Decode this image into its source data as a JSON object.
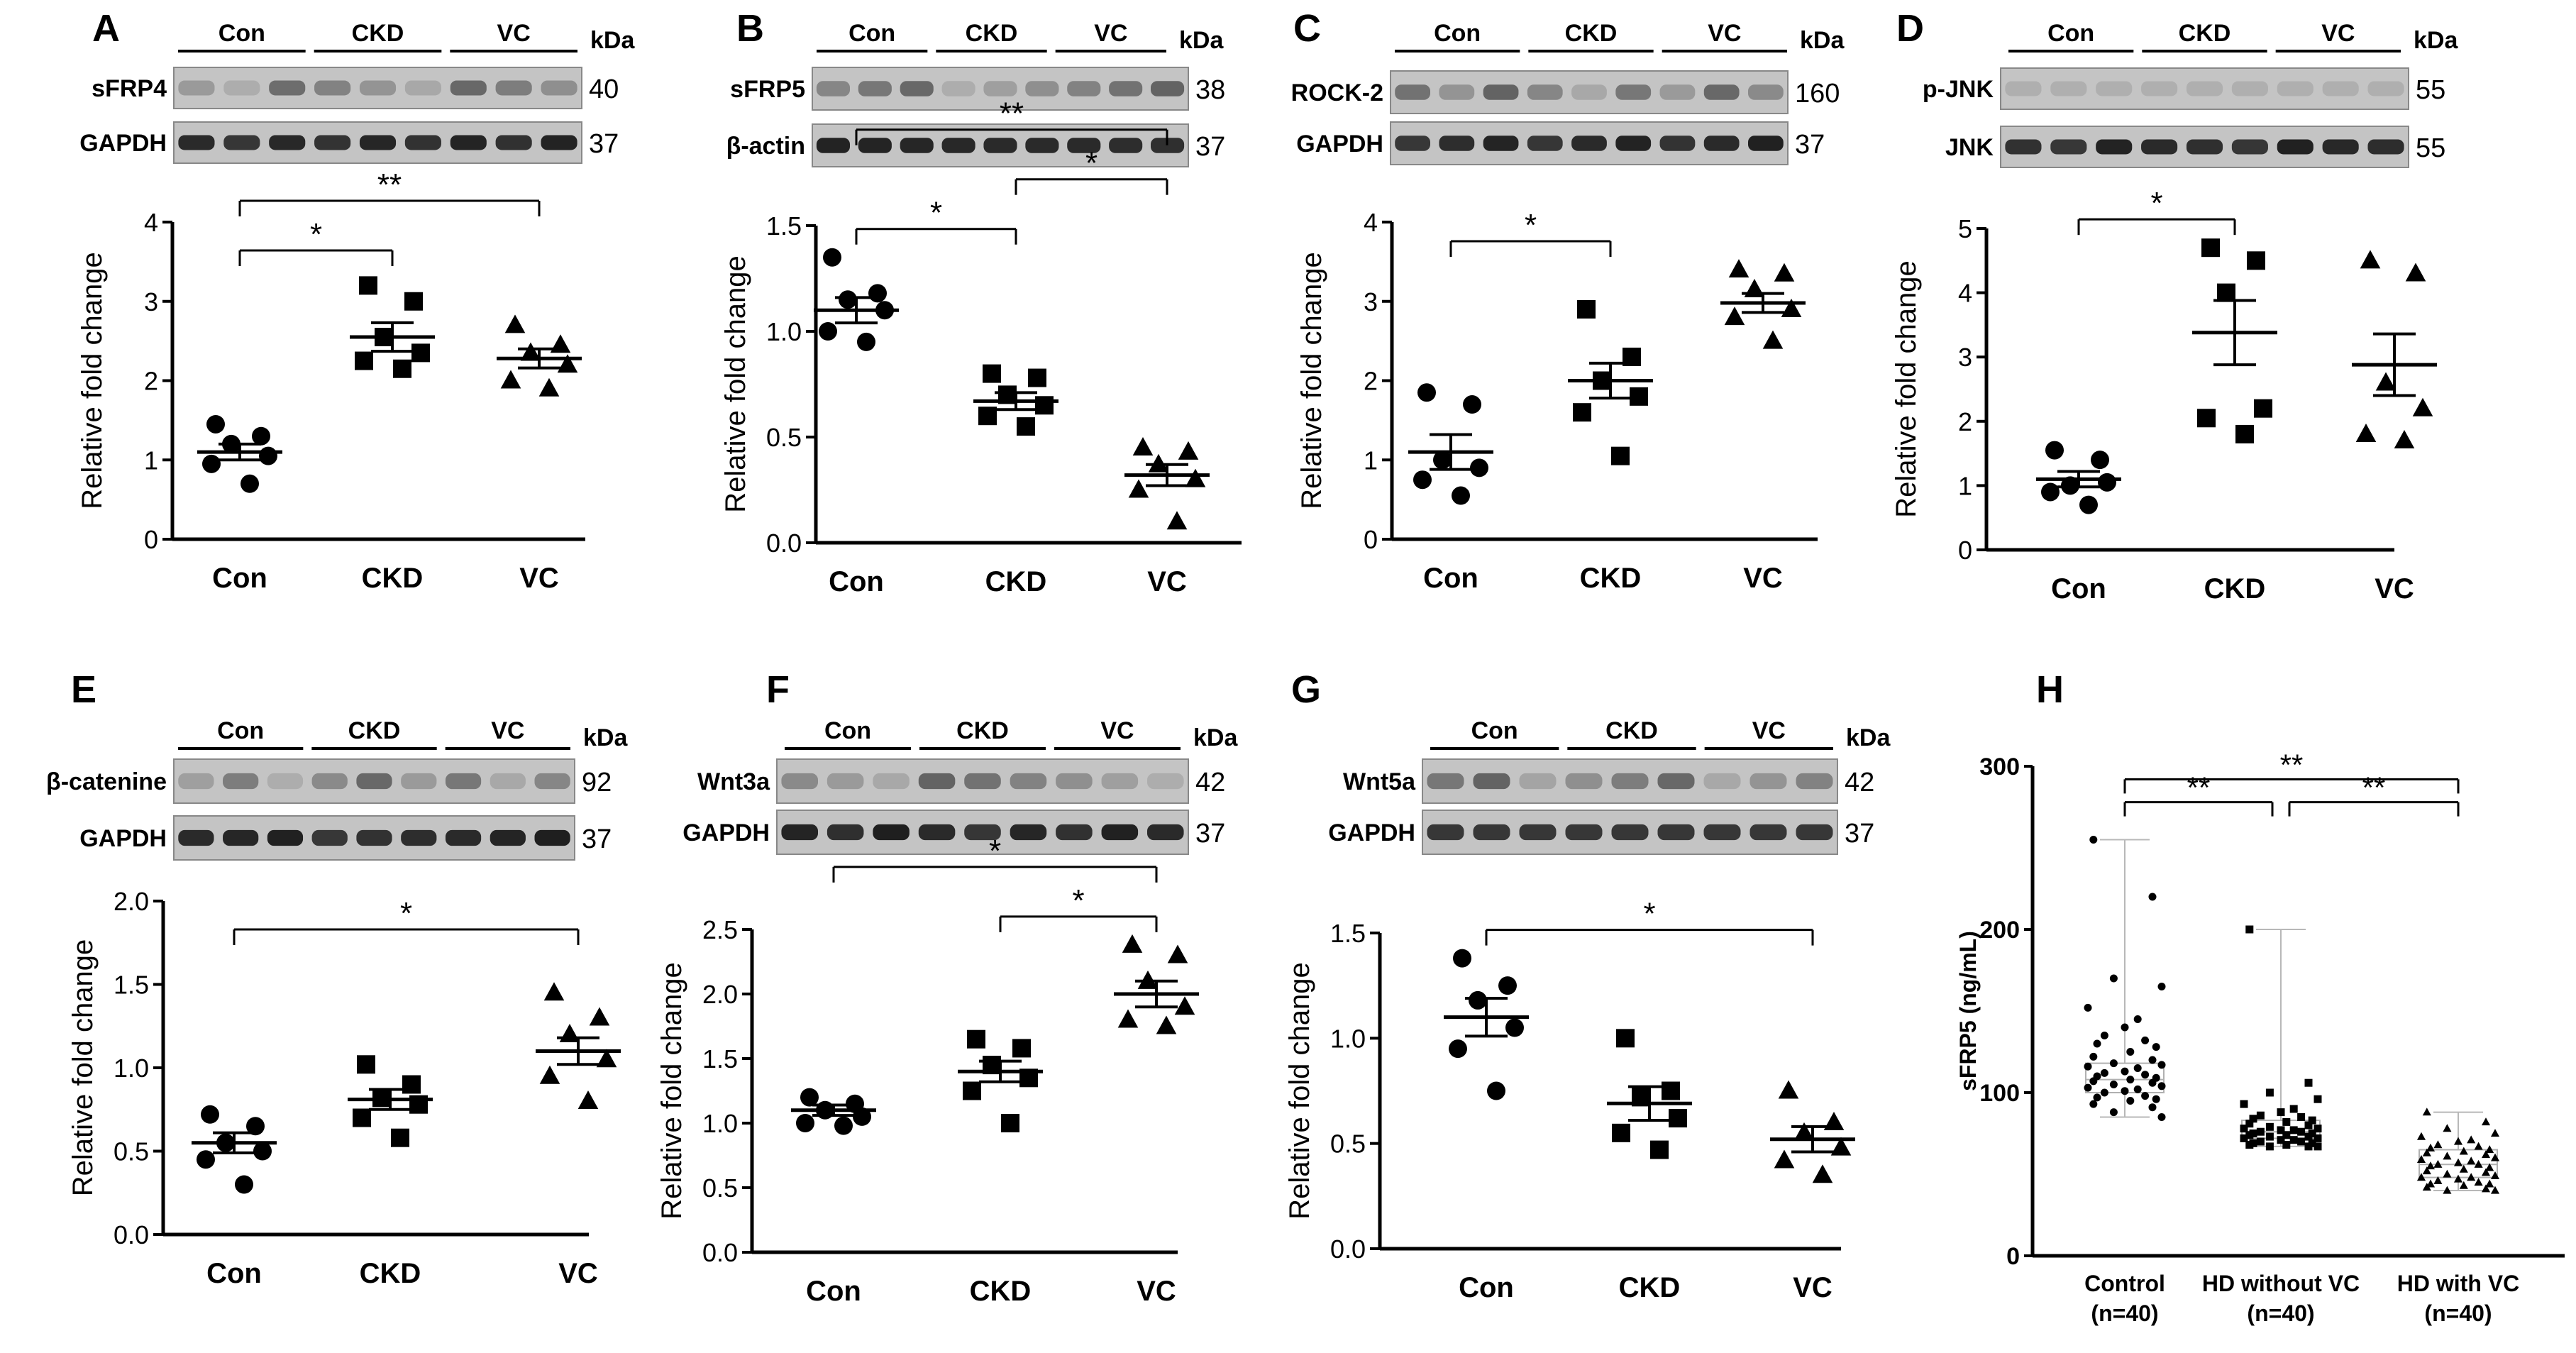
{
  "figure_labels": {
    "groups": [
      "Con",
      "CKD",
      "VC"
    ],
    "kda": "kDa",
    "ylabel": "Relative fold change"
  },
  "colors": {
    "ink": "#000000",
    "blot_bg": "#c4c4c4",
    "band": "#1a1a1a",
    "box": "#b0b0b0",
    "whisker": "#b8b8b8"
  },
  "chart_data": [
    {
      "panel": "A",
      "type": "scatter",
      "blots": [
        {
          "protein": "sFRP4",
          "kda": "40"
        },
        {
          "protein": "GAPDH",
          "kda": "37"
        }
      ],
      "ylim": [
        0,
        4
      ],
      "yticks": [
        "0",
        "1",
        "2",
        "3",
        "4"
      ],
      "categories": [
        "Con",
        "CKD",
        "VC"
      ],
      "series": [
        {
          "name": "Con",
          "marker": "circle",
          "values": [
            1.45,
            1.3,
            1.2,
            1.05,
            0.95,
            0.7
          ],
          "mean": 1.1,
          "sem": 0.1
        },
        {
          "name": "CKD",
          "marker": "square",
          "values": [
            3.2,
            3.0,
            2.55,
            2.35,
            2.25,
            2.15
          ],
          "mean": 2.55,
          "sem": 0.18
        },
        {
          "name": "VC",
          "marker": "triangle",
          "values": [
            2.7,
            2.45,
            2.35,
            2.2,
            2.0,
            1.9
          ],
          "mean": 2.28,
          "sem": 0.12
        }
      ],
      "significance": [
        {
          "from": 0,
          "to": 1,
          "label": "*"
        },
        {
          "from": 0,
          "to": 2,
          "label": "**"
        }
      ]
    },
    {
      "panel": "B",
      "type": "scatter",
      "blots": [
        {
          "protein": "sFRP5",
          "kda": "38"
        },
        {
          "protein": "β-actin",
          "kda": "37"
        }
      ],
      "ylim": [
        0,
        1.5
      ],
      "yticks": [
        "0.0",
        "0.5",
        "1.0",
        "1.5"
      ],
      "categories": [
        "Con",
        "CKD",
        "VC"
      ],
      "series": [
        {
          "name": "Con",
          "marker": "circle",
          "values": [
            1.35,
            1.18,
            1.15,
            1.1,
            1.0,
            0.95
          ],
          "mean": 1.1,
          "sem": 0.06
        },
        {
          "name": "CKD",
          "marker": "square",
          "values": [
            0.8,
            0.78,
            0.7,
            0.65,
            0.6,
            0.55
          ],
          "mean": 0.67,
          "sem": 0.04
        },
        {
          "name": "VC",
          "marker": "triangle",
          "values": [
            0.45,
            0.43,
            0.37,
            0.3,
            0.25,
            0.1
          ],
          "mean": 0.32,
          "sem": 0.05
        }
      ],
      "significance": [
        {
          "from": 0,
          "to": 1,
          "label": "*"
        },
        {
          "from": 1,
          "to": 2,
          "label": "*"
        },
        {
          "from": 0,
          "to": 2,
          "label": "**"
        }
      ]
    },
    {
      "panel": "C",
      "type": "scatter",
      "blots": [
        {
          "protein": "ROCK-2",
          "kda": "160"
        },
        {
          "protein": "GAPDH",
          "kda": "37"
        }
      ],
      "ylim": [
        0,
        4
      ],
      "yticks": [
        "0",
        "1",
        "2",
        "3",
        "4"
      ],
      "categories": [
        "Con",
        "CKD",
        "VC"
      ],
      "series": [
        {
          "name": "Con",
          "marker": "circle",
          "values": [
            1.85,
            1.7,
            1.0,
            0.9,
            0.75,
            0.55
          ],
          "mean": 1.1,
          "sem": 0.22
        },
        {
          "name": "CKD",
          "marker": "square",
          "values": [
            2.9,
            2.3,
            2.0,
            1.8,
            1.6,
            1.05
          ],
          "mean": 2.0,
          "sem": 0.22
        },
        {
          "name": "VC",
          "marker": "triangle",
          "values": [
            3.4,
            3.35,
            3.15,
            2.9,
            2.8,
            2.5
          ],
          "mean": 2.98,
          "sem": 0.12
        }
      ],
      "significance": [
        {
          "from": 0,
          "to": 1,
          "label": "*"
        }
      ]
    },
    {
      "panel": "D",
      "type": "scatter",
      "blots": [
        {
          "protein": "p-JNK",
          "kda": "55"
        },
        {
          "protein": "JNK",
          "kda": "55"
        }
      ],
      "ylim": [
        0,
        5
      ],
      "yticks": [
        "0",
        "1",
        "2",
        "3",
        "4",
        "5"
      ],
      "categories": [
        "Con",
        "CKD",
        "VC"
      ],
      "series": [
        {
          "name": "Con",
          "marker": "circle",
          "values": [
            1.55,
            1.4,
            1.0,
            1.05,
            0.9,
            0.7
          ],
          "mean": 1.1,
          "sem": 0.12
        },
        {
          "name": "CKD",
          "marker": "square",
          "values": [
            4.7,
            4.5,
            4.0,
            2.2,
            2.05,
            1.8
          ],
          "mean": 3.38,
          "sem": 0.5
        },
        {
          "name": "VC",
          "marker": "triangle",
          "values": [
            4.5,
            4.3,
            2.6,
            2.2,
            1.8,
            1.7
          ],
          "mean": 2.88,
          "sem": 0.48
        }
      ],
      "significance": [
        {
          "from": 0,
          "to": 1,
          "label": "*"
        }
      ]
    },
    {
      "panel": "E",
      "type": "scatter",
      "blots": [
        {
          "protein": "β-catenine",
          "kda": "92"
        },
        {
          "protein": "GAPDH",
          "kda": "37"
        }
      ],
      "ylim": [
        0,
        2
      ],
      "yticks": [
        "0.0",
        "0.5",
        "1.0",
        "1.5",
        "2.0"
      ],
      "categories": [
        "Con",
        "CKD",
        "VC"
      ],
      "series": [
        {
          "name": "Con",
          "marker": "circle",
          "values": [
            0.72,
            0.65,
            0.55,
            0.5,
            0.45,
            0.3
          ],
          "mean": 0.55,
          "sem": 0.06
        },
        {
          "name": "CKD",
          "marker": "square",
          "values": [
            1.02,
            0.9,
            0.82,
            0.78,
            0.7,
            0.58
          ],
          "mean": 0.81,
          "sem": 0.06
        },
        {
          "name": "VC",
          "marker": "triangle",
          "values": [
            1.45,
            1.3,
            1.2,
            1.05,
            0.95,
            0.8
          ],
          "mean": 1.1,
          "sem": 0.08
        }
      ],
      "significance": [
        {
          "from": 0,
          "to": 2,
          "label": "*"
        }
      ]
    },
    {
      "panel": "F",
      "type": "scatter",
      "blots": [
        {
          "protein": "Wnt3a",
          "kda": "42"
        },
        {
          "protein": "GAPDH",
          "kda": "37"
        }
      ],
      "ylim": [
        0,
        2.5
      ],
      "yticks": [
        "0.0",
        "0.5",
        "1.0",
        "1.5",
        "2.0",
        "2.5"
      ],
      "categories": [
        "Con",
        "CKD",
        "VC"
      ],
      "series": [
        {
          "name": "Con",
          "marker": "circle",
          "values": [
            1.2,
            1.15,
            1.1,
            1.05,
            1.0,
            0.98
          ],
          "mean": 1.1,
          "sem": 0.04
        },
        {
          "name": "CKD",
          "marker": "square",
          "values": [
            1.65,
            1.58,
            1.45,
            1.35,
            1.25,
            1.0
          ],
          "mean": 1.4,
          "sem": 0.08
        },
        {
          "name": "VC",
          "marker": "triangle",
          "values": [
            2.38,
            2.3,
            2.1,
            1.9,
            1.8,
            1.75
          ],
          "mean": 2.0,
          "sem": 0.1
        }
      ],
      "significance": [
        {
          "from": 0,
          "to": 2,
          "label": "*"
        },
        {
          "from": 1,
          "to": 2,
          "label": "*"
        }
      ]
    },
    {
      "panel": "G",
      "type": "scatter",
      "blots": [
        {
          "protein": "Wnt5a",
          "kda": "42"
        },
        {
          "protein": "GAPDH",
          "kda": "37"
        }
      ],
      "ylim": [
        0,
        1.5
      ],
      "yticks": [
        "0.0",
        "0.5",
        "1.0",
        "1.5"
      ],
      "categories": [
        "Con",
        "CKD",
        "VC"
      ],
      "series": [
        {
          "name": "Con",
          "marker": "circle",
          "values": [
            1.38,
            1.25,
            1.18,
            1.05,
            0.95,
            0.75
          ],
          "mean": 1.1,
          "sem": 0.09
        },
        {
          "name": "CKD",
          "marker": "square",
          "values": [
            1.0,
            0.75,
            0.72,
            0.62,
            0.55,
            0.47
          ],
          "mean": 0.69,
          "sem": 0.08
        },
        {
          "name": "VC",
          "marker": "triangle",
          "values": [
            0.75,
            0.6,
            0.55,
            0.48,
            0.42,
            0.35
          ],
          "mean": 0.52,
          "sem": 0.06
        }
      ],
      "significance": [
        {
          "from": 0,
          "to": 2,
          "label": "*"
        }
      ]
    },
    {
      "panel": "H",
      "type": "box",
      "ylabel": "sFRP5 (ng/mL)",
      "ylim": [
        0,
        300
      ],
      "yticks": [
        "0",
        "100",
        "200",
        "300"
      ],
      "categories": [
        "Control",
        "HD without VC",
        "HD with VC"
      ],
      "category_notes": [
        "(n=40)",
        "(n=40)",
        "(n=40)"
      ],
      "boxes": [
        {
          "min": 85,
          "q1": 100,
          "median": 108,
          "q3": 118,
          "max": 255,
          "points": [
            255,
            220,
            170,
            165,
            152,
            145,
            140,
            135,
            132,
            130,
            128,
            125,
            122,
            120,
            118,
            117,
            116,
            115,
            113,
            112,
            111,
            110,
            109,
            108,
            107,
            106,
            105,
            104,
            103,
            102,
            101,
            100,
            98,
            97,
            96,
            95,
            93,
            91,
            88,
            85
          ]
        },
        {
          "min": 67,
          "q1": 72,
          "median": 76,
          "q3": 83,
          "max": 200,
          "points": [
            200,
            106,
            100,
            96,
            93,
            90,
            88,
            86,
            85,
            84,
            83,
            82,
            81,
            80,
            79,
            78,
            78,
            77,
            77,
            76,
            76,
            75,
            75,
            74,
            74,
            73,
            73,
            72,
            72,
            71,
            71,
            70,
            70,
            69,
            69,
            68,
            68,
            67,
            67,
            67
          ]
        },
        {
          "min": 40,
          "q1": 48,
          "median": 56,
          "q3": 65,
          "max": 88,
          "points": [
            88,
            82,
            78,
            75,
            73,
            71,
            70,
            68,
            67,
            66,
            65,
            64,
            63,
            62,
            61,
            60,
            59,
            58,
            57,
            56,
            56,
            55,
            54,
            53,
            52,
            51,
            50,
            49,
            48,
            48,
            47,
            46,
            45,
            44,
            44,
            43,
            42,
            41,
            40,
            40
          ]
        }
      ],
      "significance": [
        {
          "from": 0,
          "to": 1,
          "label": "**"
        },
        {
          "from": 1,
          "to": 2,
          "label": "**"
        },
        {
          "from": 0,
          "to": 2,
          "label": "**"
        }
      ]
    }
  ]
}
